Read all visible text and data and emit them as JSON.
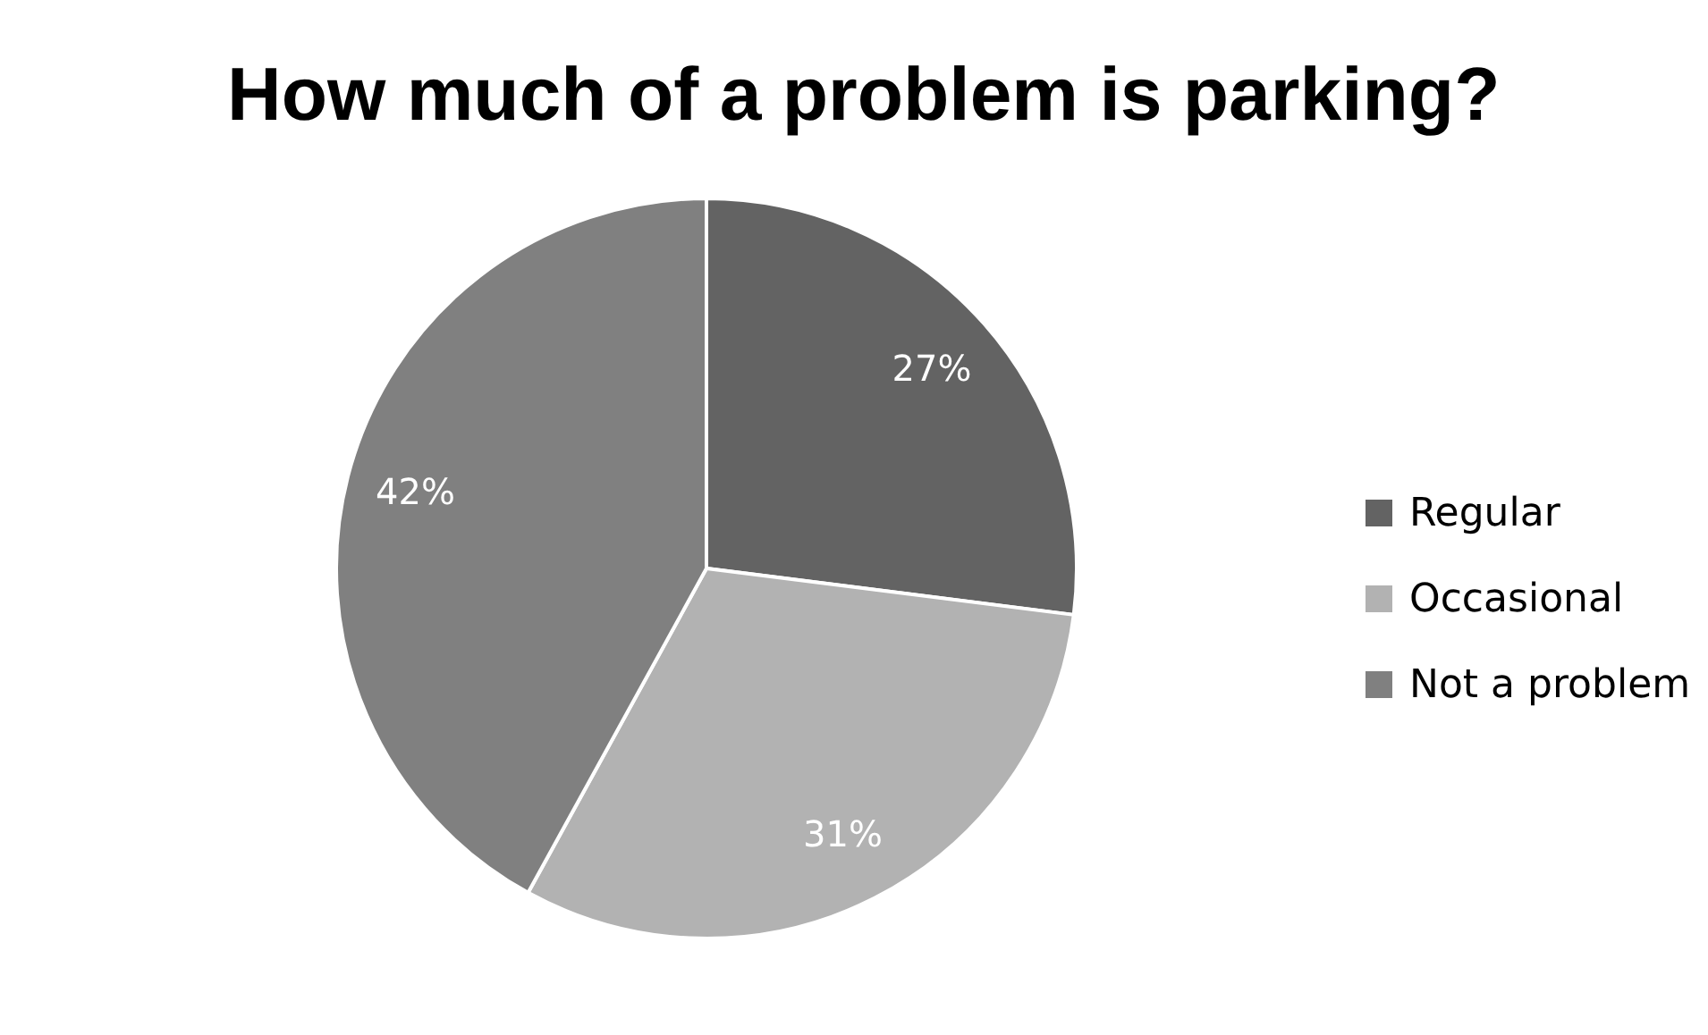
{
  "chart_data": {
    "type": "pie",
    "title": "How much of a problem is parking?",
    "categories": [
      "Regular",
      "Occasional",
      "Not a problem"
    ],
    "values": [
      27,
      31,
      42
    ],
    "colors": [
      "#636363",
      "#b2b2b2",
      "#808080"
    ],
    "value_labels": [
      "27%",
      "31%",
      "42%"
    ],
    "legend": "right"
  }
}
